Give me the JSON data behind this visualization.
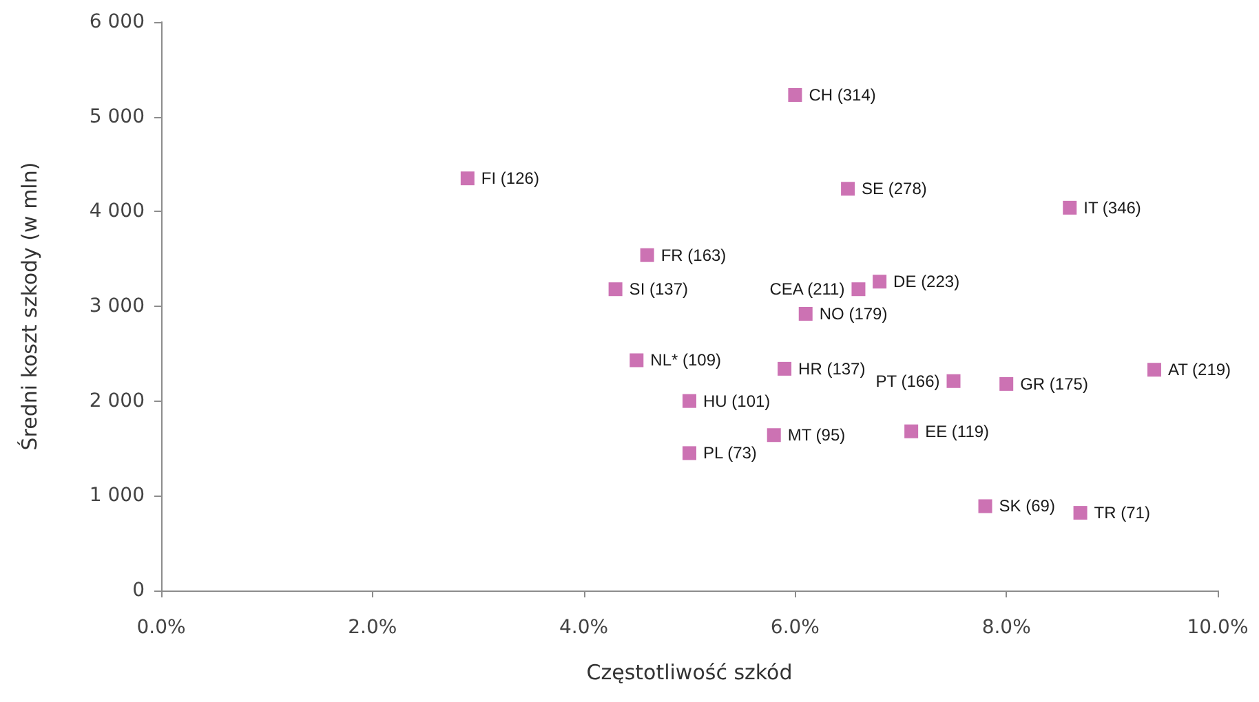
{
  "chart_data": {
    "type": "scatter",
    "xlabel": "Częstotliwość szkód",
    "ylabel": "Średni koszt szkody (w mln)",
    "x": [
      2.9,
      4.5,
      4.3,
      4.6,
      5.0,
      5.0,
      5.8,
      5.9,
      6.0,
      6.1,
      6.5,
      6.6,
      6.8,
      7.1,
      7.5,
      7.8,
      8.0,
      8.6,
      8.7,
      9.4
    ],
    "values": [
      4350,
      2430,
      3180,
      3540,
      2000,
      1450,
      1640,
      2340,
      5230,
      2920,
      4240,
      3180,
      3260,
      1680,
      2210,
      890,
      2180,
      4040,
      820,
      2330
    ],
    "color": "#bf4fa0",
    "marker": "square",
    "xlim": [
      0,
      10
    ],
    "xticks": [
      {
        "value": 0,
        "label": "0.0%"
      },
      {
        "value": 2,
        "label": "2.0%"
      },
      {
        "value": 4,
        "label": "4.0%"
      },
      {
        "value": 6,
        "label": "6.0%"
      },
      {
        "value": 8,
        "label": "8.0%"
      },
      {
        "value": 10,
        "label": "10.0%"
      }
    ],
    "ylim": [
      0,
      6000
    ],
    "yticks": [
      0,
      {
        "value": 1000,
        "label": "1 000"
      },
      {
        "value": 2000,
        "label": "2 000"
      },
      {
        "value": 3000,
        "label": "3 000"
      },
      {
        "value": 4000,
        "label": "4 000"
      },
      {
        "value": 5000,
        "label": "5 000"
      },
      {
        "value": 6000,
        "label": "6 000"
      }
    ],
    "annotations": [
      {
        "text": "FI (126)",
        "x": 2.9,
        "y": 4350
      },
      {
        "text": "NL* (109)",
        "x": 4.5,
        "y": 2430
      },
      {
        "text": "SI (137)",
        "x": 4.3,
        "y": 3180
      },
      {
        "text": "FR (163)",
        "x": 4.6,
        "y": 3540
      },
      {
        "text": "HU (101)",
        "x": 5.0,
        "y": 2000
      },
      {
        "text": "PL (73)",
        "x": 5.0,
        "y": 1450
      },
      {
        "text": "MT (95)",
        "x": 5.8,
        "y": 1640
      },
      {
        "text": "HR (137)",
        "x": 5.9,
        "y": 2340
      },
      {
        "text": "CH (314)",
        "x": 6.0,
        "y": 5230
      },
      {
        "text": "NO (179)",
        "x": 6.1,
        "y": 2920
      },
      {
        "text": "SE (278)",
        "x": 6.5,
        "y": 4240
      },
      {
        "text": "CEA (211)",
        "x": 6.6,
        "y": 3180
      },
      {
        "text": "DE (223)",
        "x": 6.8,
        "y": 3260
      },
      {
        "text": "EE (119)",
        "x": 7.1,
        "y": 1680
      },
      {
        "text": "PT (166)",
        "x": 7.5,
        "y": 2210
      },
      {
        "text": "SK (69)",
        "x": 7.8,
        "y": 890
      },
      {
        "text": "GR (175)",
        "x": 8.0,
        "y": 2180
      },
      {
        "text": "IT (346)",
        "x": 8.6,
        "y": 4040
      },
      {
        "text": "TR (71)",
        "x": 8.7,
        "y": 820
      },
      {
        "text": "AT (219)",
        "x": 9.4,
        "y": 2330
      }
    ]
  }
}
